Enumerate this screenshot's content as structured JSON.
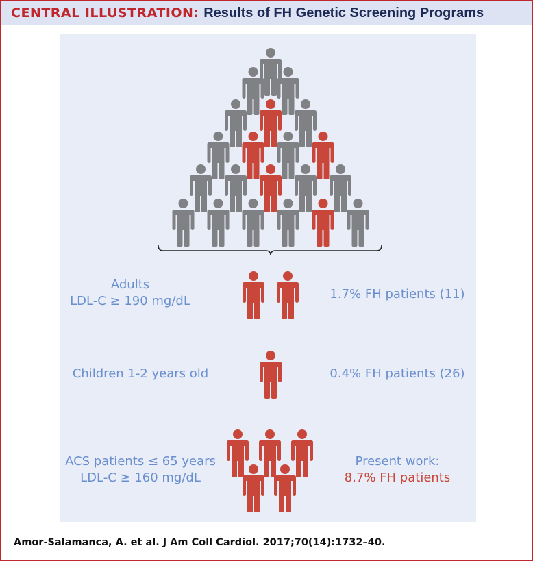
{
  "header": {
    "label": "CENTRAL ILLUSTRATION:",
    "title": "Results of FH Genetic Screening Programs"
  },
  "colors": {
    "border": "#c0272d",
    "panel": "#e8edf7",
    "person_gray": "#808185",
    "person_red": "#c8473a",
    "text_blue": "#6a8fcf"
  },
  "pyramid": {
    "rows": [
      [
        "gray"
      ],
      [
        "gray",
        "gray"
      ],
      [
        "gray",
        "red",
        "gray"
      ],
      [
        "gray",
        "red",
        "gray",
        "red"
      ],
      [
        "gray",
        "gray",
        "red",
        "gray",
        "gray"
      ],
      [
        "gray",
        "gray",
        "gray",
        "gray",
        "red",
        "gray"
      ]
    ]
  },
  "groups": [
    {
      "label_lines": [
        "Adults",
        "LDL-C ≥ 190 mg/dL"
      ],
      "result_lines": [
        "1.7% FH patients (11)"
      ],
      "icon": "two-adults-icon"
    },
    {
      "label_lines": [
        "Children 1-2 years old"
      ],
      "result_lines": [
        "0.4% FH patients (26)"
      ],
      "icon": "child-icon"
    },
    {
      "label_lines": [
        "ACS patients ≤ 65 years",
        "LDL-C ≥ 160 mg/dL"
      ],
      "result_lines": [
        "Present work:",
        "8.7% FH patients"
      ],
      "icon": "patient-group-icon"
    }
  ],
  "footer": "Amor-Salamanca, A. et al. J Am Coll Cardiol. 2017;70(14):1732–40."
}
